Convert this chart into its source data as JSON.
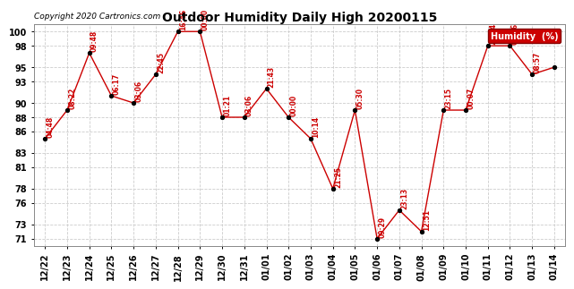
{
  "title": "Outdoor Humidity Daily High 20200115",
  "copyright": "Copyright 2020 Cartronics.com",
  "ylabel": "Humidity (%)",
  "background_color": "#ffffff",
  "grid_color": "#cccccc",
  "line_color": "#cc0000",
  "marker_color": "#000000",
  "legend_bg": "#cc0000",
  "legend_text": "Humidity  (%)",
  "ylim": [
    70,
    101
  ],
  "yticks": [
    71,
    73,
    76,
    78,
    81,
    83,
    86,
    88,
    90,
    93,
    95,
    98,
    100
  ],
  "dates": [
    "12/22",
    "12/23",
    "12/24",
    "12/25",
    "12/26",
    "12/27",
    "12/28",
    "12/29",
    "12/30",
    "12/31",
    "01/01",
    "01/02",
    "01/03",
    "01/04",
    "01/05",
    "01/06",
    "01/07",
    "01/08",
    "01/09",
    "01/10",
    "01/11",
    "01/12",
    "01/13",
    "01/14"
  ],
  "values": [
    85,
    89,
    97,
    91,
    90,
    94,
    100,
    100,
    88,
    88,
    92,
    88,
    85,
    78,
    89,
    71,
    75,
    72,
    89,
    89,
    98,
    98,
    94,
    95
  ],
  "labels": [
    "04:48",
    "08:22",
    "09:48",
    "06:17",
    "03:06",
    "22:45",
    "16:46",
    "00:00",
    "01:21",
    "03:06",
    "21:43",
    "00:00",
    "10:14",
    "21:25",
    "05:30",
    "09:29",
    "23:13",
    "12:51",
    "23:15",
    "00:07",
    "23:34",
    "03:26",
    "08:57",
    ""
  ],
  "label_color": "#cc0000",
  "title_color": "#000000",
  "copyright_color": "#000000",
  "title_fontsize": 10,
  "copyright_fontsize": 6.5,
  "label_fontsize": 5.5,
  "tick_fontsize": 7,
  "legend_fontsize": 7
}
